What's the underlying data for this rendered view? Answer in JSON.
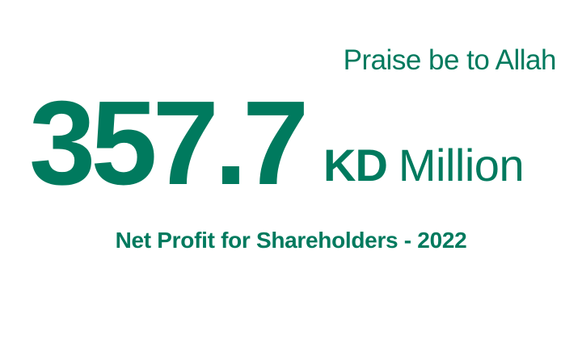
{
  "colors": {
    "brand": "#007a5e",
    "background": "#ffffff"
  },
  "headline": {
    "greeting": "Praise be to Allah"
  },
  "figure": {
    "value": "357.7",
    "currency": "KD",
    "scale": "Million"
  },
  "caption": "Net Profit for Shareholders - 2022"
}
